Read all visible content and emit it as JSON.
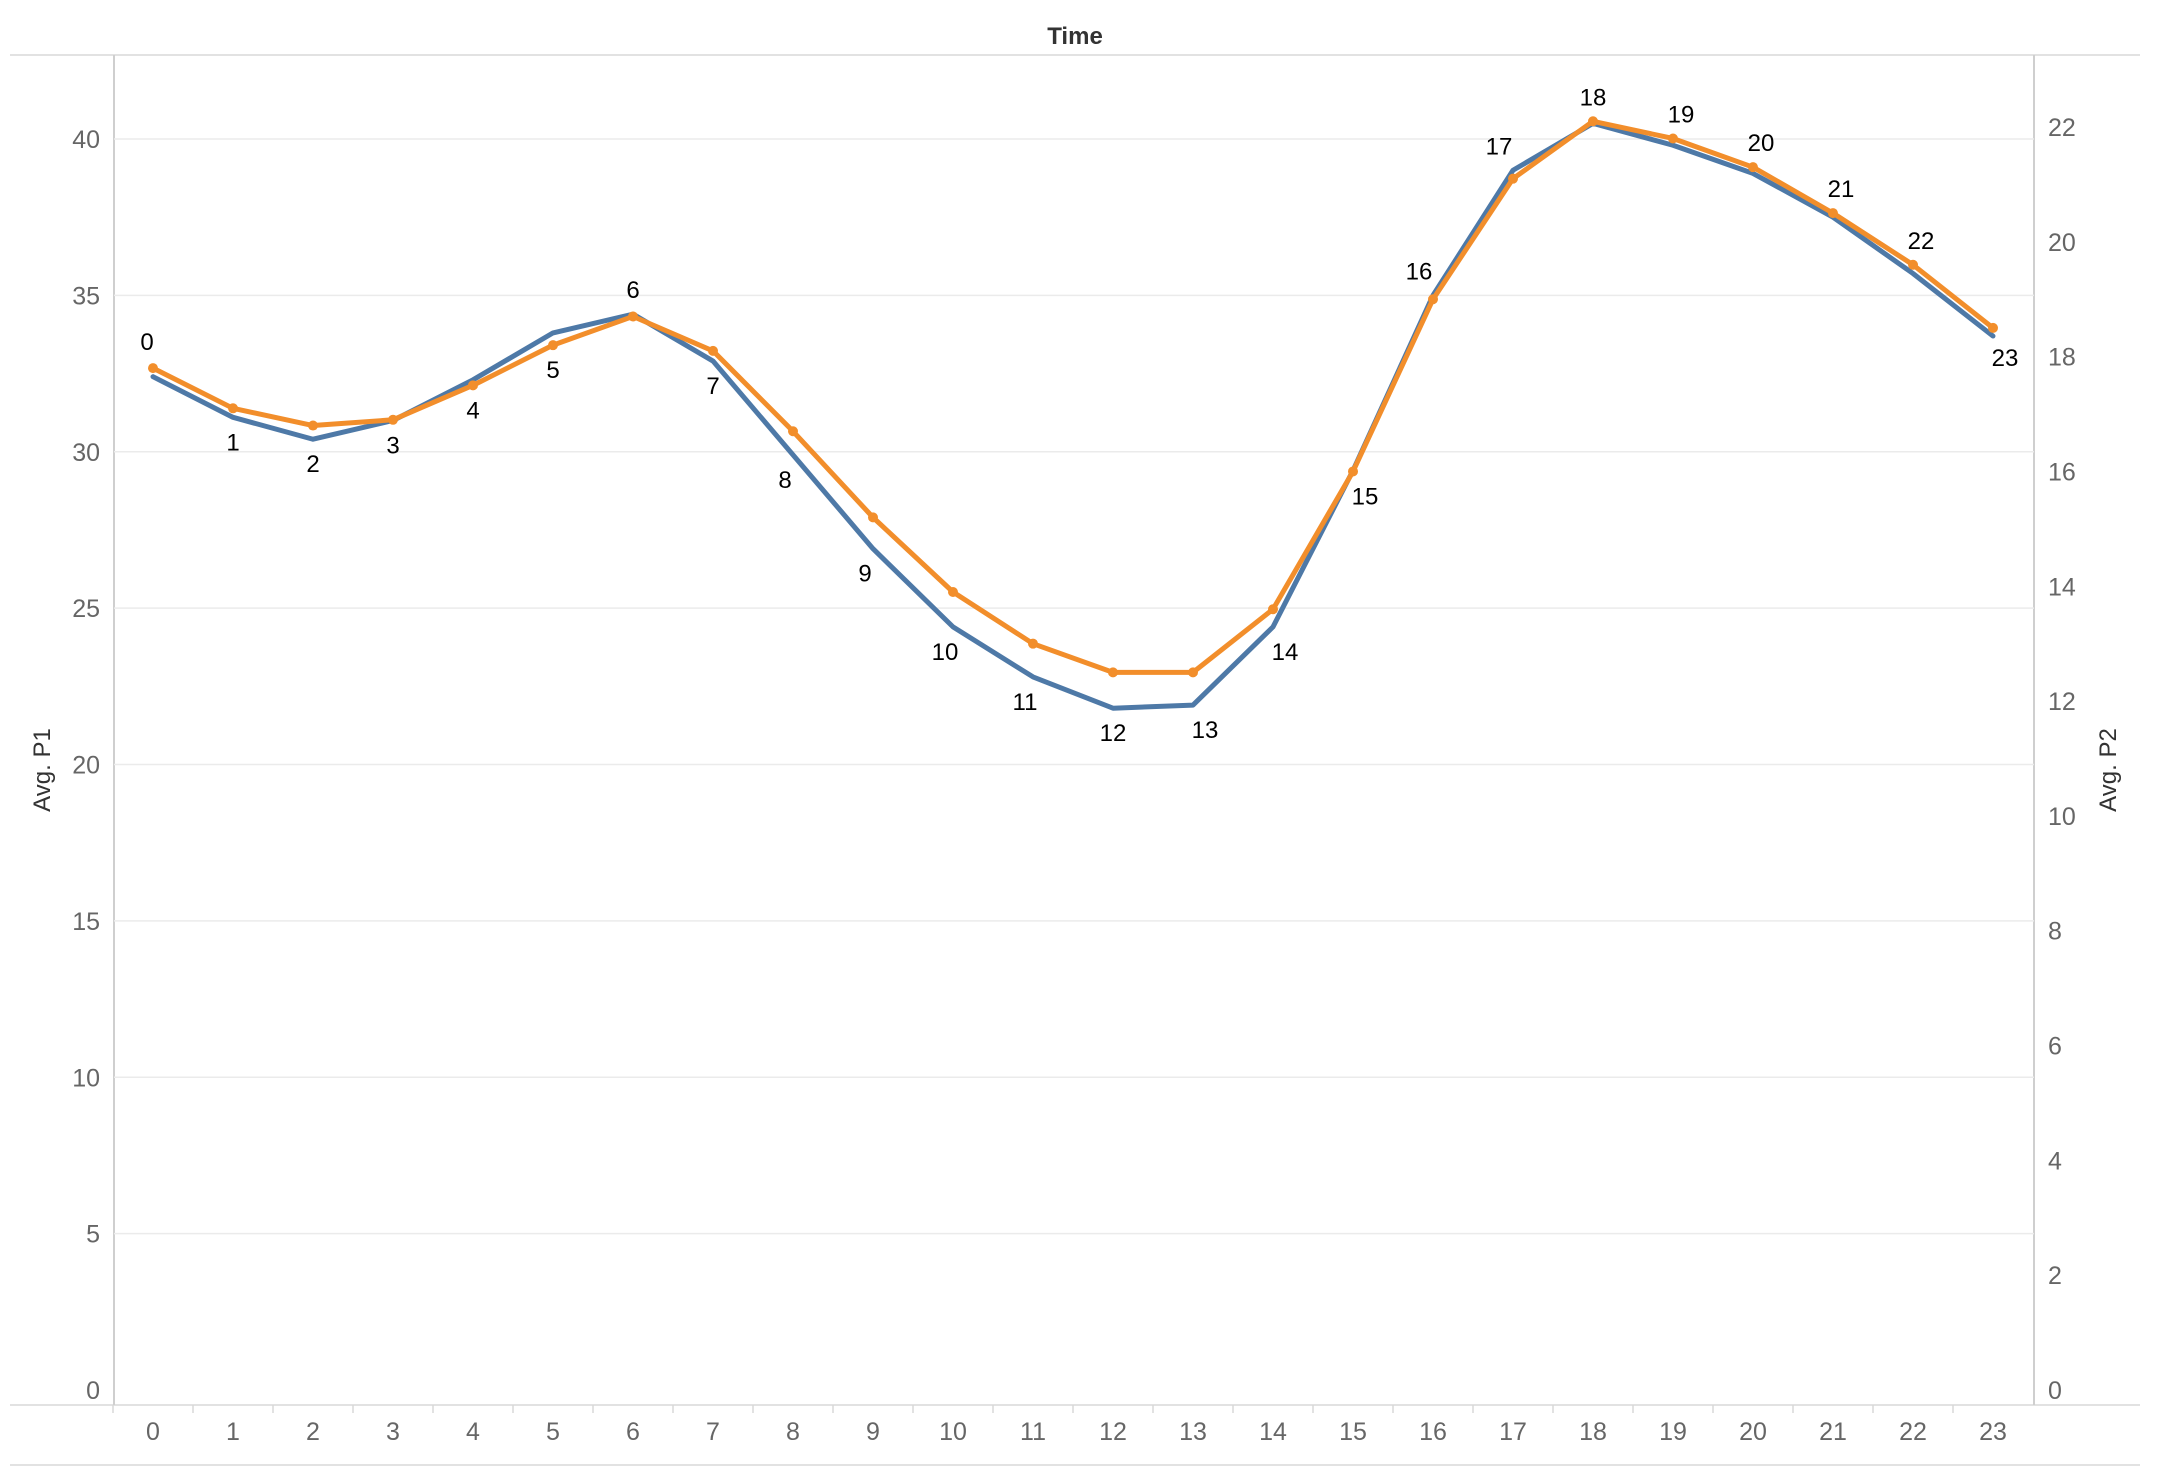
{
  "chart_data": {
    "type": "line",
    "title": "Time",
    "xlabel": "",
    "ylabel": "Avg. P1",
    "y2label": "Avg. P2",
    "categories": [
      "0",
      "1",
      "2",
      "3",
      "4",
      "5",
      "6",
      "7",
      "8",
      "9",
      "10",
      "11",
      "12",
      "13",
      "14",
      "15",
      "16",
      "17",
      "18",
      "19",
      "20",
      "21",
      "22",
      "23"
    ],
    "ylim": [
      0,
      42
    ],
    "y2lim": [
      0,
      23
    ],
    "yticks": [
      0,
      5,
      10,
      15,
      20,
      25,
      30,
      35,
      40
    ],
    "y2ticks": [
      0,
      2,
      4,
      6,
      8,
      10,
      12,
      14,
      16,
      18,
      20,
      22
    ],
    "grid": true,
    "series": [
      {
        "axis": "left",
        "color": "#4e79a7",
        "marker": false,
        "values": [
          32.4,
          31.1,
          30.4,
          31.0,
          32.3,
          33.8,
          34.4,
          32.9,
          29.9,
          26.9,
          24.4,
          22.8,
          21.8,
          21.9,
          24.4,
          29.4,
          35.0,
          39.0,
          40.5,
          39.8,
          38.9,
          37.5,
          35.7,
          33.7
        ]
      },
      {
        "axis": "right",
        "color": "#f28e2b",
        "marker": true,
        "values": [
          17.8,
          17.1,
          16.8,
          16.9,
          17.5,
          18.2,
          18.7,
          18.1,
          16.7,
          15.2,
          13.9,
          13.0,
          12.5,
          12.5,
          13.6,
          16.0,
          19.0,
          21.1,
          22.1,
          21.8,
          21.3,
          20.5,
          19.6,
          18.5
        ]
      }
    ],
    "point_labels": [
      "0",
      "1",
      "2",
      "3",
      "4",
      "5",
      "6",
      "7",
      "8",
      "9",
      "10",
      "11",
      "12",
      "13",
      "14",
      "15",
      "16",
      "17",
      "18",
      "19",
      "20",
      "21",
      "22",
      "23"
    ]
  }
}
